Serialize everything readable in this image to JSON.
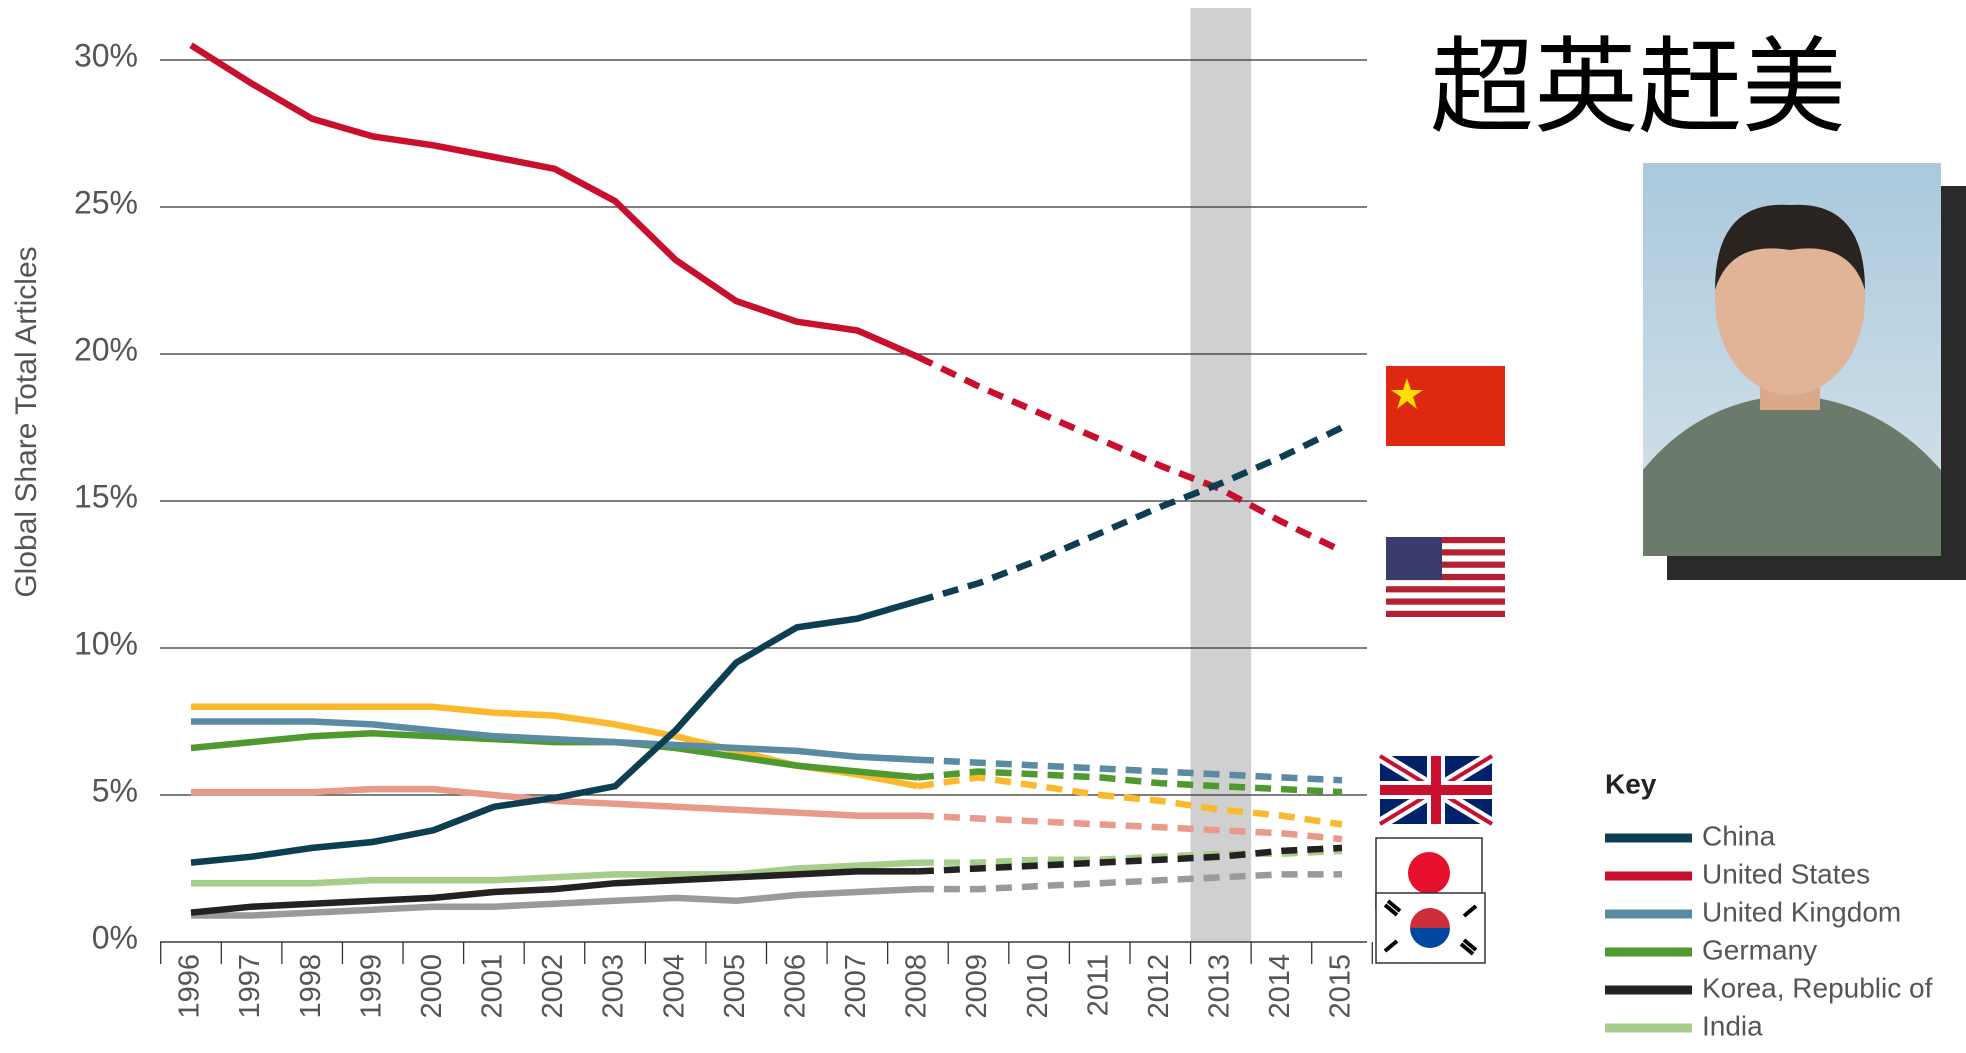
{
  "chart_data": {
    "type": "line",
    "title": "超英赶美",
    "y_label": "Global Share Total Articles",
    "legend_title": "Key",
    "x": [
      1996,
      1997,
      1998,
      1999,
      2000,
      2001,
      2002,
      2003,
      2004,
      2005,
      2006,
      2007,
      2008,
      2009,
      2010,
      2011,
      2012,
      2013,
      2014,
      2015
    ],
    "xlim": [
      1996,
      2015
    ],
    "ylim": [
      0,
      30
    ],
    "yticks": [
      {
        "value": 0,
        "label": "0%"
      },
      {
        "value": 5,
        "label": "5%"
      },
      {
        "value": 10,
        "label": "10%"
      },
      {
        "value": 15,
        "label": "15%"
      },
      {
        "value": 20,
        "label": "20%"
      },
      {
        "value": 25,
        "label": "25%"
      },
      {
        "value": 30,
        "label": "30%"
      }
    ],
    "grid": true,
    "projection_from": 2008,
    "highlight_x": 2013,
    "series": [
      {
        "name": "China",
        "color": "#0d3e52",
        "values": [
          2.7,
          2.9,
          3.2,
          3.4,
          3.8,
          4.6,
          4.9,
          5.3,
          7.2,
          9.5,
          10.7,
          11.0,
          11.6,
          12.2,
          13.0,
          13.9,
          14.8,
          15.6,
          16.5,
          17.5
        ]
      },
      {
        "name": "United States",
        "color": "#c8102e",
        "values": [
          30.5,
          29.2,
          28.0,
          27.4,
          27.1,
          26.7,
          26.3,
          25.2,
          23.2,
          21.8,
          21.1,
          20.8,
          19.9,
          18.9,
          18.0,
          17.1,
          16.2,
          15.4,
          14.3,
          13.3
        ]
      },
      {
        "name": "United Kingdom",
        "color": "#5b8ba3",
        "values": [
          7.5,
          7.5,
          7.5,
          7.4,
          7.2,
          7.0,
          6.9,
          6.8,
          6.7,
          6.6,
          6.5,
          6.3,
          6.2,
          6.1,
          6.0,
          5.9,
          5.8,
          5.7,
          5.6,
          5.5
        ]
      },
      {
        "name": "Germany",
        "color": "#4e9a2f",
        "values": [
          6.6,
          6.8,
          7.0,
          7.1,
          7.0,
          6.9,
          6.8,
          6.8,
          6.6,
          6.3,
          6.0,
          5.8,
          5.6,
          5.8,
          5.7,
          5.6,
          5.4,
          5.3,
          5.2,
          5.1
        ]
      },
      {
        "name": "Korea, Republic of",
        "color": "#222222",
        "values": [
          1.0,
          1.2,
          1.3,
          1.4,
          1.5,
          1.7,
          1.8,
          2.0,
          2.1,
          2.2,
          2.3,
          2.4,
          2.4,
          2.5,
          2.6,
          2.7,
          2.8,
          2.9,
          3.1,
          3.2
        ]
      },
      {
        "name": "India",
        "color": "#a6ce8a",
        "values": [
          2.0,
          2.0,
          2.0,
          2.1,
          2.1,
          2.1,
          2.2,
          2.3,
          2.3,
          2.3,
          2.5,
          2.6,
          2.7,
          2.7,
          2.8,
          2.8,
          2.9,
          3.0,
          3.0,
          3.1
        ]
      },
      {
        "color": "#fbb92e",
        "values": [
          8.0,
          8.0,
          8.0,
          8.0,
          8.0,
          7.8,
          7.7,
          7.4,
          7.0,
          6.5,
          6.0,
          5.7,
          5.3,
          5.6,
          5.3,
          5.0,
          4.8,
          4.5,
          4.3,
          4.0
        ]
      },
      {
        "color": "#e99a8a",
        "values": [
          5.1,
          5.1,
          5.1,
          5.2,
          5.2,
          5.0,
          4.8,
          4.7,
          4.6,
          4.5,
          4.4,
          4.3,
          4.3,
          4.2,
          4.1,
          4.0,
          3.9,
          3.8,
          3.7,
          3.5
        ]
      },
      {
        "color": "#9a9a9a",
        "values": [
          0.9,
          0.9,
          1.0,
          1.1,
          1.2,
          1.2,
          1.3,
          1.4,
          1.5,
          1.4,
          1.6,
          1.7,
          1.8,
          1.8,
          1.9,
          2.0,
          2.1,
          2.2,
          2.3,
          2.3
        ]
      }
    ]
  }
}
